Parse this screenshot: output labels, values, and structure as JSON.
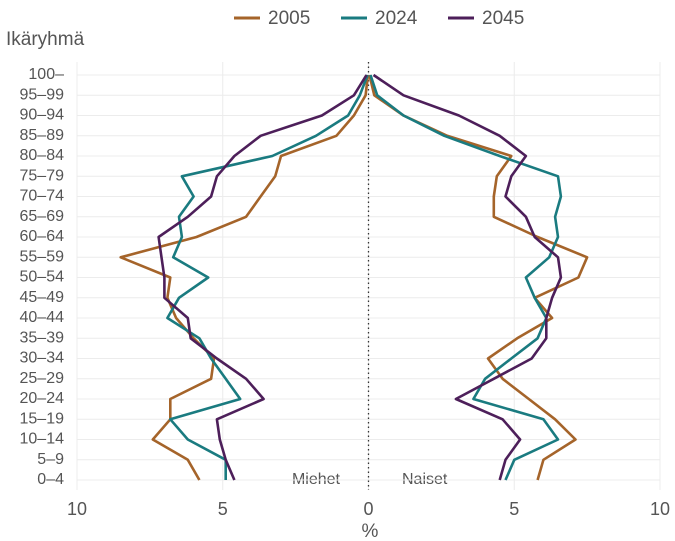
{
  "chart_data": {
    "type": "pyramid-line",
    "y_axis_title": "Ikäryhmä",
    "x_axis_title": "%",
    "left_label": "Miehet",
    "right_label": "Naiset",
    "legend": "top",
    "grid": true,
    "categories": [
      "0–4",
      "5–9",
      "10–14",
      "15–19",
      "20–24",
      "25–29",
      "30–34",
      "35–39",
      "40–44",
      "45–49",
      "50–54",
      "55–59",
      "60–64",
      "65–69",
      "70–74",
      "75–79",
      "80–84",
      "85–89",
      "90–94",
      "95–99",
      "100–"
    ],
    "xlim": [
      -10,
      10
    ],
    "xticks": [
      {
        "value": -10,
        "label": "10"
      },
      {
        "value": -5,
        "label": "5"
      },
      0,
      5,
      10
    ],
    "series": [
      {
        "name": "2005",
        "color": "#a5642a",
        "men": [
          -5.8,
          -6.2,
          -7.4,
          -6.8,
          -6.8,
          -5.4,
          -5.3,
          -6.0,
          -6.6,
          -6.9,
          -6.8,
          -8.5,
          -5.9,
          -4.2,
          -3.7,
          -3.2,
          -3.0,
          -1.1,
          -0.5,
          -0.1,
          -0.02
        ],
        "women": [
          5.8,
          6.0,
          7.1,
          6.4,
          5.5,
          4.6,
          4.1,
          5.1,
          6.3,
          5.7,
          7.2,
          7.5,
          5.8,
          4.3,
          4.3,
          4.4,
          4.9,
          2.7,
          1.2,
          0.2,
          0.03
        ]
      },
      {
        "name": "2024",
        "color": "#1a7b80",
        "men": [
          -4.9,
          -4.9,
          -6.2,
          -6.8,
          -4.4,
          -4.9,
          -5.4,
          -5.8,
          -6.9,
          -6.5,
          -5.5,
          -6.7,
          -6.4,
          -6.5,
          -6.0,
          -6.4,
          -3.3,
          -1.8,
          -0.7,
          -0.3,
          -0.03
        ],
        "women": [
          4.7,
          5.0,
          6.5,
          6.0,
          3.6,
          4.0,
          4.9,
          5.8,
          6.1,
          5.7,
          5.4,
          6.2,
          6.5,
          6.4,
          6.6,
          6.5,
          4.5,
          2.6,
          1.2,
          0.3,
          0.07
        ]
      },
      {
        "name": "2045",
        "color": "#4d1f5a",
        "men": [
          -4.6,
          -4.9,
          -5.1,
          -5.2,
          -3.6,
          -4.2,
          -5.2,
          -6.1,
          -6.2,
          -7.0,
          -7.0,
          -7.1,
          -7.2,
          -6.2,
          -5.4,
          -5.2,
          -4.6,
          -3.7,
          -1.6,
          -0.5,
          -0.07
        ],
        "women": [
          4.5,
          4.7,
          5.2,
          4.6,
          3.0,
          4.3,
          5.6,
          6.1,
          6.1,
          6.3,
          6.6,
          6.5,
          5.7,
          5.4,
          4.7,
          4.9,
          5.4,
          4.5,
          3.1,
          1.2,
          0.17
        ]
      }
    ]
  }
}
